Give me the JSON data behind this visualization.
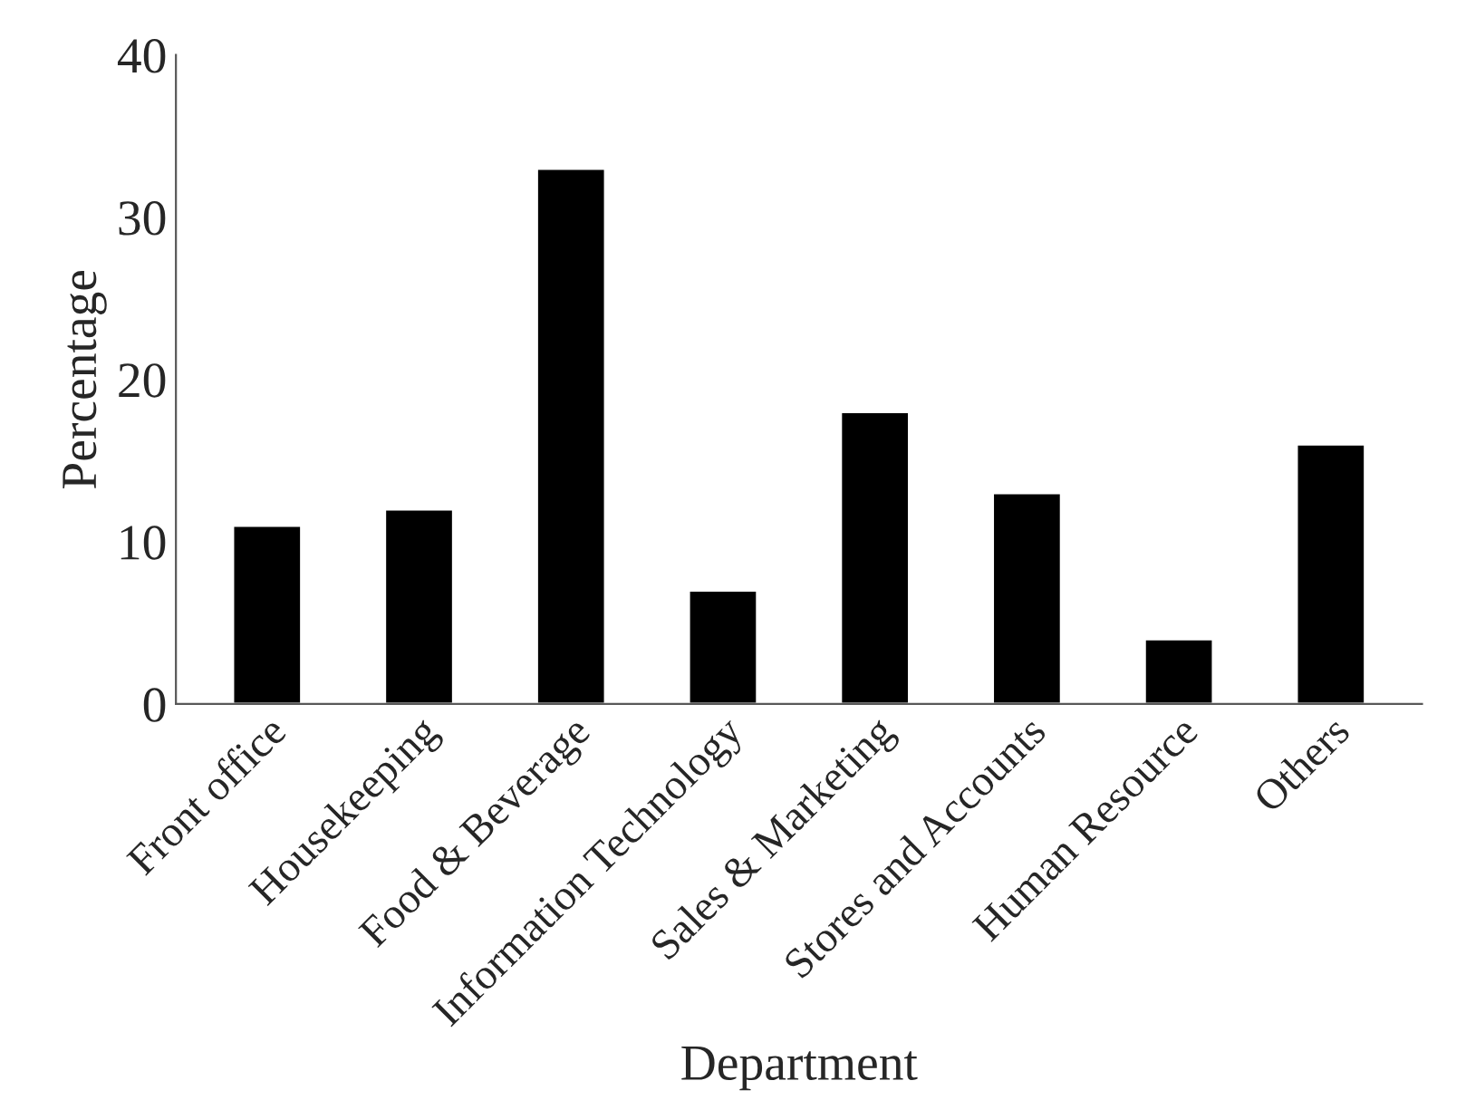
{
  "chart_data": {
    "type": "bar",
    "xlabel": "Department",
    "ylabel": "Percentage",
    "categories": [
      "Front office",
      "Housekeeping",
      "Food & Beverage",
      "Information Technology",
      "Sales & Marketing",
      "Stores and Accounts",
      "Human Resource",
      "Others"
    ],
    "values": [
      11,
      12,
      33,
      7,
      18,
      13,
      4,
      16
    ],
    "color": "#000000",
    "ylim": [
      0,
      40
    ],
    "yticks": [
      0,
      10,
      20,
      30,
      40
    ],
    "grid": false
  }
}
